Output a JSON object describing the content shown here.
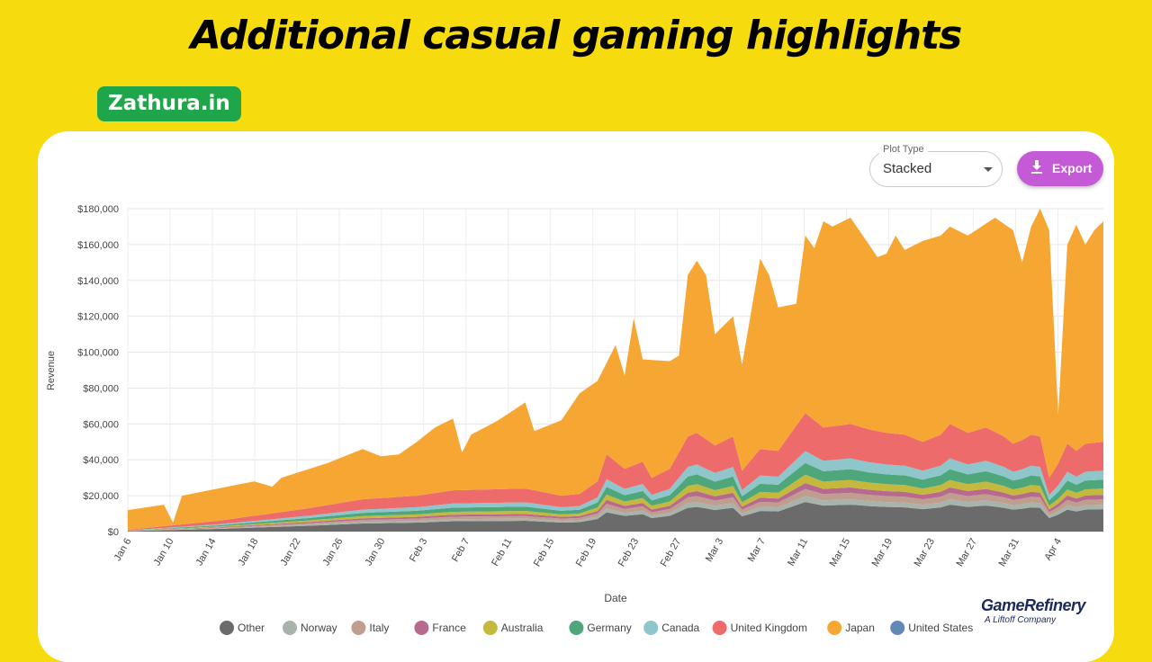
{
  "header": {
    "title": "Additional casual gaming highlights",
    "brand": "Zathura.in"
  },
  "controls": {
    "plot_type_label": "Plot Type",
    "plot_type_value": "Stacked",
    "export_label": "Export"
  },
  "logo": {
    "name": "GameRefinery",
    "subtitle": "A Liftoff Company"
  },
  "colors": {
    "background": "#f6dc0f",
    "brand_green": "#1fa64a",
    "export_purple": "#c45ad6"
  },
  "chart_data": {
    "type": "area",
    "stacked": true,
    "xlabel": "Date",
    "ylabel": "Revenue",
    "ylim": [
      0,
      180000
    ],
    "y_ticks": [
      "$0",
      "$20,000",
      "$40,000",
      "$60,000",
      "$80,000",
      "$100,000",
      "$120,000",
      "$140,000",
      "$160,000",
      "$180,000"
    ],
    "x_ticks": [
      "Jan 6",
      "Jan 10",
      "Jan 14",
      "Jan 18",
      "Jan 22",
      "Jan 26",
      "Jan 30",
      "Feb 3",
      "Feb 7",
      "Feb 11",
      "Feb 15",
      "Feb 19",
      "Feb 23",
      "Feb 27",
      "Mar 3",
      "Mar 7",
      "Mar 11",
      "Mar 15",
      "Mar 19",
      "Mar 23",
      "Mar 27",
      "Mar 31",
      "Apr 4"
    ],
    "grid": true,
    "legend_position": "bottom",
    "totals_unit": "USD",
    "total_curve": [
      [
        0,
        12000
      ],
      [
        4,
        15000
      ],
      [
        5,
        5000
      ],
      [
        6,
        20000
      ],
      [
        10,
        24000
      ],
      [
        14,
        28000
      ],
      [
        16,
        25000
      ],
      [
        17,
        30000
      ],
      [
        22,
        38000
      ],
      [
        26,
        46000
      ],
      [
        28,
        42000
      ],
      [
        30,
        43000
      ],
      [
        32,
        50000
      ],
      [
        34,
        58000
      ],
      [
        36,
        63000
      ],
      [
        37,
        44000
      ],
      [
        38,
        54000
      ],
      [
        41,
        62000
      ],
      [
        44,
        72000
      ],
      [
        45,
        56000
      ],
      [
        48,
        62000
      ],
      [
        50,
        77000
      ],
      [
        52,
        84000
      ],
      [
        54,
        104000
      ],
      [
        55,
        87000
      ],
      [
        56,
        119000
      ],
      [
        57,
        96000
      ],
      [
        60,
        95000
      ],
      [
        61,
        98000
      ],
      [
        62,
        143000
      ],
      [
        63,
        151000
      ],
      [
        64,
        143000
      ],
      [
        65,
        110000
      ],
      [
        67,
        120000
      ],
      [
        68,
        93000
      ],
      [
        70,
        152000
      ],
      [
        71,
        143000
      ],
      [
        72,
        125000
      ],
      [
        74,
        127000
      ],
      [
        75,
        165000
      ],
      [
        76,
        158000
      ],
      [
        77,
        173000
      ],
      [
        78,
        170000
      ],
      [
        80,
        175000
      ],
      [
        83,
        153000
      ],
      [
        84,
        155000
      ],
      [
        85,
        165000
      ],
      [
        86,
        157000
      ],
      [
        88,
        162000
      ],
      [
        90,
        165000
      ],
      [
        91,
        170000
      ],
      [
        93,
        165000
      ],
      [
        96,
        175000
      ],
      [
        98,
        168000
      ],
      [
        99,
        150000
      ],
      [
        100,
        170000
      ],
      [
        101,
        180000
      ],
      [
        102,
        168000
      ],
      [
        103,
        65000
      ],
      [
        104,
        160000
      ],
      [
        105,
        171000
      ],
      [
        106,
        160000
      ],
      [
        107,
        168000
      ],
      [
        108,
        173000
      ]
    ],
    "top_band_curve": [
      [
        0,
        1000
      ],
      [
        10,
        6000
      ],
      [
        20,
        13000
      ],
      [
        26,
        18000
      ],
      [
        32,
        20000
      ],
      [
        36,
        23000
      ],
      [
        44,
        24000
      ],
      [
        48,
        20000
      ],
      [
        50,
        21000
      ],
      [
        52,
        28000
      ],
      [
        53,
        43000
      ],
      [
        55,
        35000
      ],
      [
        57,
        39000
      ],
      [
        58,
        30000
      ],
      [
        60,
        35000
      ],
      [
        62,
        53000
      ],
      [
        63,
        55000
      ],
      [
        65,
        48000
      ],
      [
        67,
        53000
      ],
      [
        68,
        34000
      ],
      [
        70,
        46000
      ],
      [
        72,
        45000
      ],
      [
        73,
        52000
      ],
      [
        75,
        66000
      ],
      [
        77,
        58000
      ],
      [
        80,
        60000
      ],
      [
        82,
        57000
      ],
      [
        84,
        55000
      ],
      [
        86,
        54000
      ],
      [
        88,
        50000
      ],
      [
        90,
        54000
      ],
      [
        91,
        60000
      ],
      [
        93,
        55000
      ],
      [
        95,
        58000
      ],
      [
        97,
        53000
      ],
      [
        98,
        49000
      ],
      [
        99,
        51000
      ],
      [
        100,
        54000
      ],
      [
        101,
        53000
      ],
      [
        102,
        30000
      ],
      [
        103,
        38000
      ],
      [
        104,
        49000
      ],
      [
        105,
        45000
      ],
      [
        106,
        49000
      ],
      [
        108,
        50000
      ]
    ],
    "series": [
      {
        "name": "Other",
        "color": "#6b6b6b"
      },
      {
        "name": "Norway",
        "color": "#a7b3ab"
      },
      {
        "name": "Italy",
        "color": "#bf9d8f"
      },
      {
        "name": "France",
        "color": "#b86a8e"
      },
      {
        "name": "Australia",
        "color": "#c4b93d"
      },
      {
        "name": "Germany",
        "color": "#4ea77b"
      },
      {
        "name": "Canada",
        "color": "#8ec6cc"
      },
      {
        "name": "United Kingdom",
        "color": "#ee6b6b"
      },
      {
        "name": "Japan",
        "color": "#f6a733"
      },
      {
        "name": "United States",
        "color": "#6288b7"
      }
    ],
    "band_shares": [
      0.25,
      0.05,
      0.06,
      0.05,
      0.07,
      0.1,
      0.1,
      0.32
    ]
  }
}
